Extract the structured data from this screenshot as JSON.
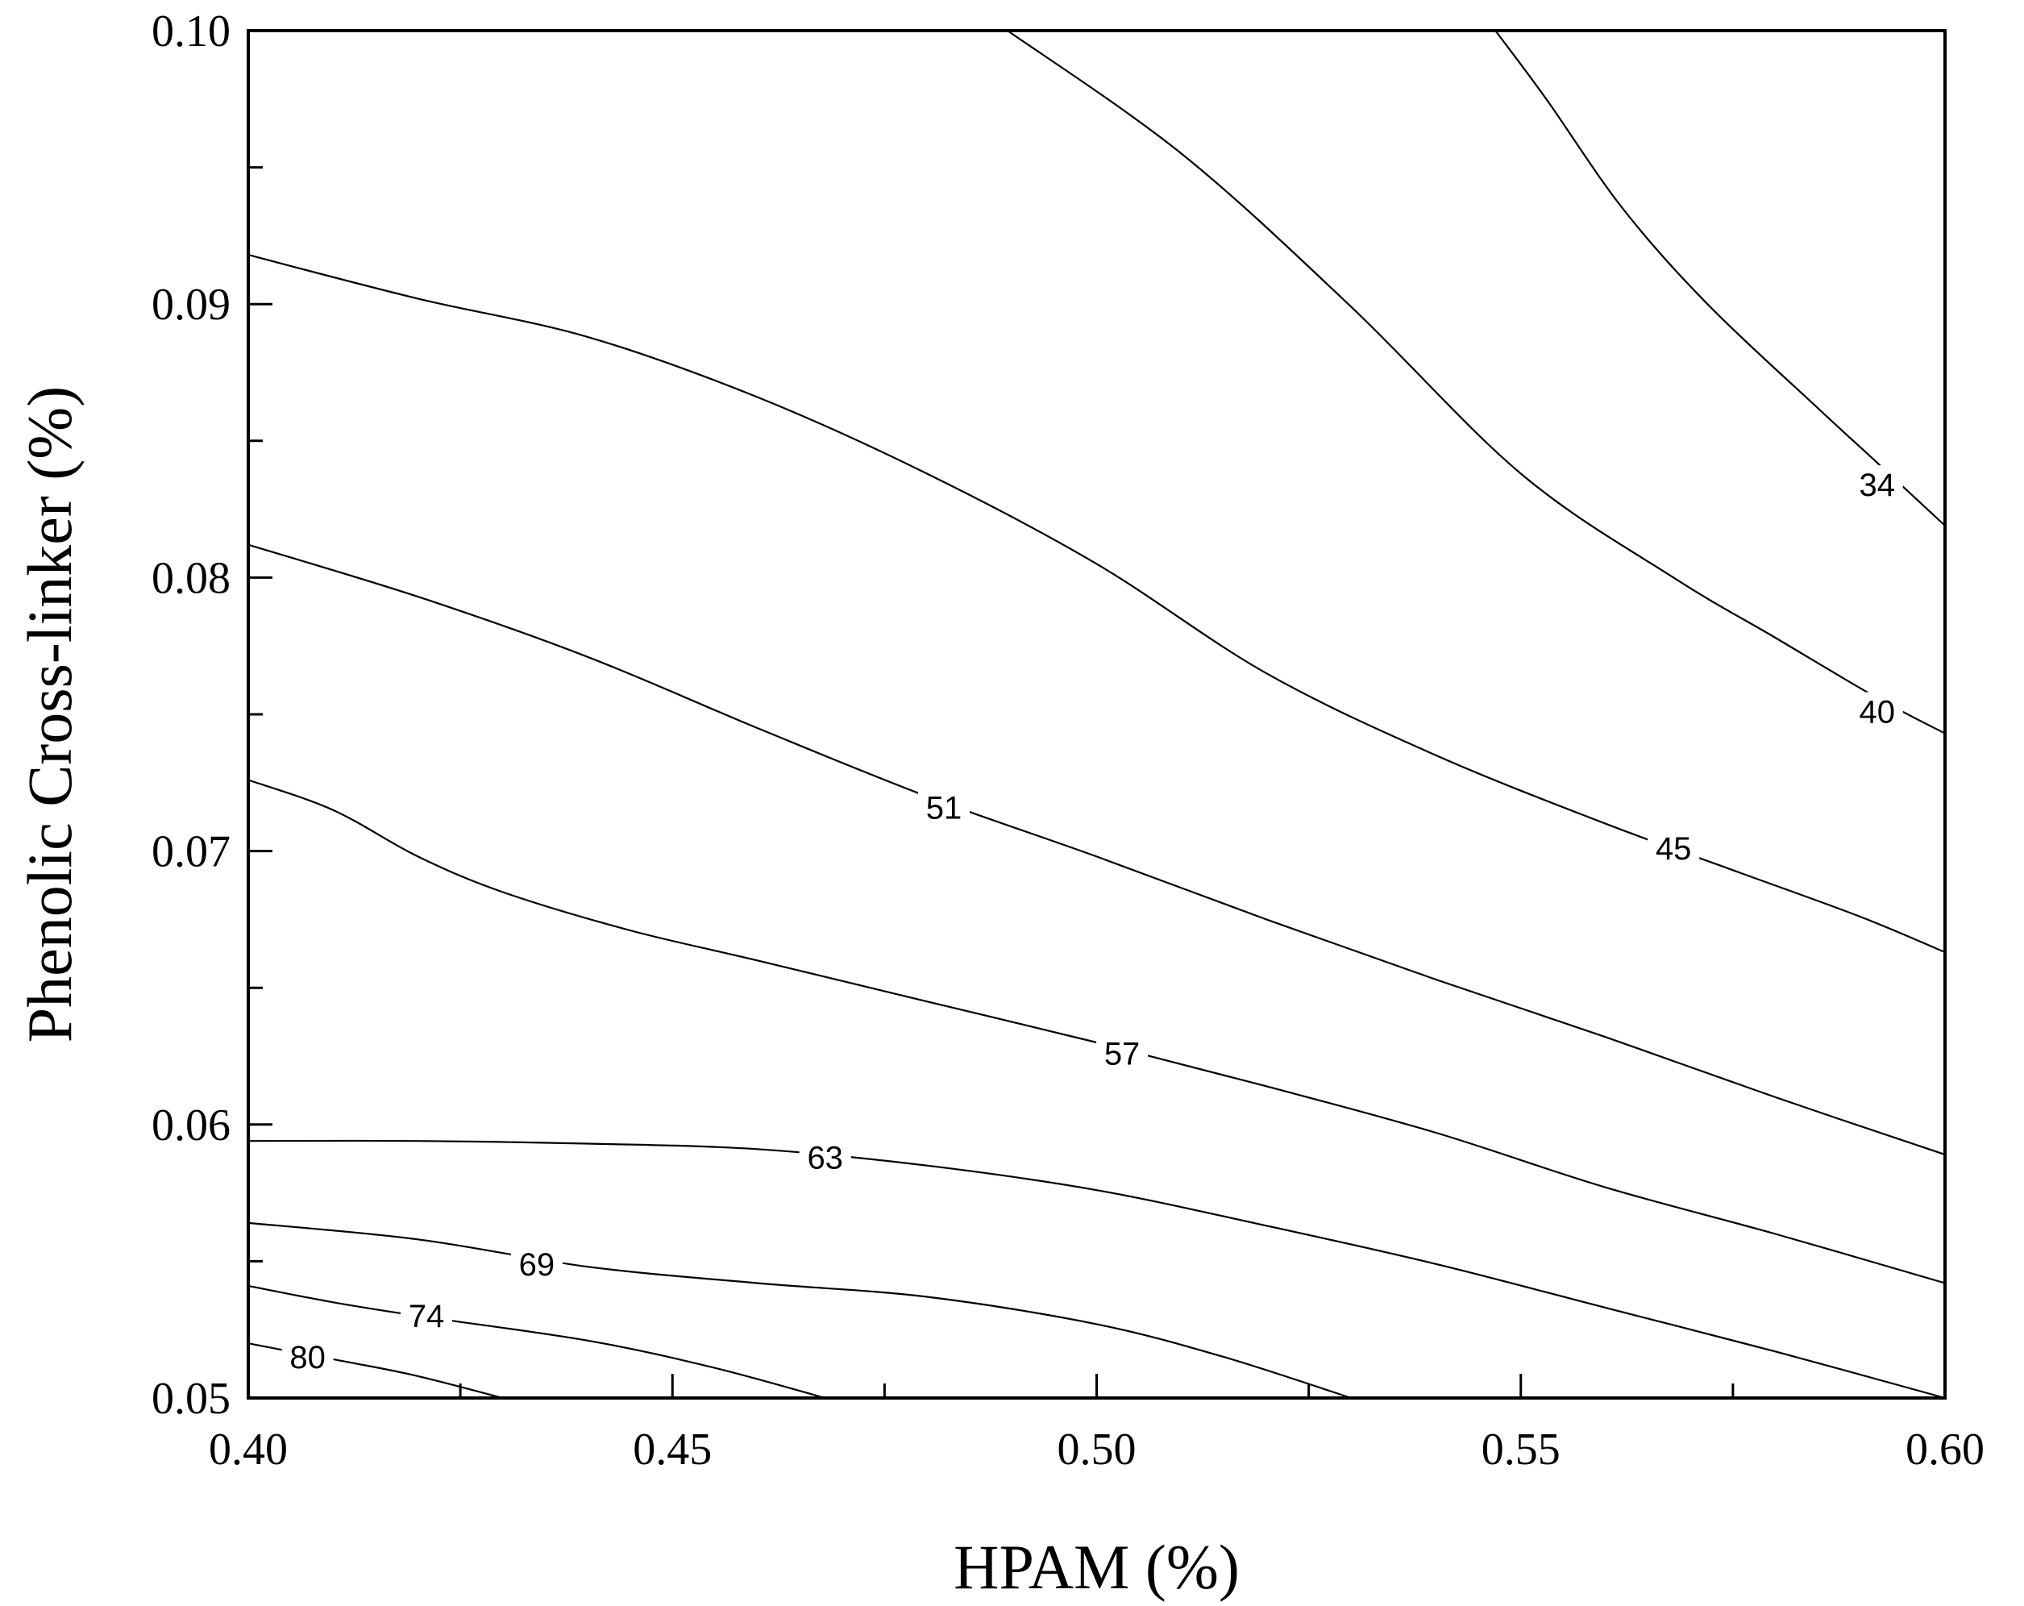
{
  "chart_data": {
    "type": "contour",
    "title": "",
    "xlabel": "HPAM (%)",
    "ylabel": "Phenolic Cross-linker (%)",
    "xlim": [
      0.4,
      0.6
    ],
    "ylim": [
      0.05,
      0.1
    ],
    "x_ticks": [
      "0.40",
      "0.45",
      "0.50",
      "0.55",
      "0.60"
    ],
    "y_ticks": [
      "0.05",
      "0.06",
      "0.07",
      "0.08",
      "0.09",
      "0.10"
    ],
    "grid": false,
    "legend": "none",
    "line_color": "#000000",
    "series": [
      {
        "name": "34",
        "label_at": [
          0.592,
          0.0834
        ],
        "points": [
          [
            0.4895,
            0.1
          ],
          [
            0.51,
            0.0955
          ],
          [
            0.53,
            0.0899
          ],
          [
            0.55,
            0.0838
          ],
          [
            0.568,
            0.08
          ],
          [
            0.58,
            0.0778
          ],
          [
            0.592,
            0.0756
          ],
          [
            0.6,
            0.0743
          ]
        ],
        "label_pos": [
          0.592,
          0.0834
        ]
      },
      {
        "name": "40",
        "label_at": [
          0.592,
          0.0751
        ],
        "points": [
          [
            0.547,
            0.1
          ],
          [
            0.553,
            0.0975
          ],
          [
            0.562,
            0.0935
          ],
          [
            0.572,
            0.09
          ],
          [
            0.585,
            0.0862
          ],
          [
            0.592,
            0.0842
          ],
          [
            0.6,
            0.0819
          ]
        ],
        "label_pos": [
          0.592,
          0.0751
        ]
      },
      {
        "name": "45",
        "label_at": [
          0.568,
          0.0701
        ],
        "points": [
          [
            0.4,
            0.0918
          ],
          [
            0.42,
            0.0902
          ],
          [
            0.44,
            0.0888
          ],
          [
            0.46,
            0.0866
          ],
          [
            0.48,
            0.0838
          ],
          [
            0.5,
            0.0805
          ],
          [
            0.52,
            0.0765
          ],
          [
            0.54,
            0.0735
          ],
          [
            0.56,
            0.071
          ],
          [
            0.575,
            0.0693
          ],
          [
            0.59,
            0.0676
          ],
          [
            0.6,
            0.0663
          ]
        ],
        "label_pos": [
          0.568,
          0.0701
        ]
      },
      {
        "name": "51",
        "label_at": [
          0.482,
          0.0716
        ],
        "points": [
          [
            0.4,
            0.0812
          ],
          [
            0.42,
            0.0793
          ],
          [
            0.44,
            0.0771
          ],
          [
            0.46,
            0.0745
          ],
          [
            0.48,
            0.072
          ],
          [
            0.5,
            0.0698
          ],
          [
            0.52,
            0.0675
          ],
          [
            0.54,
            0.0653
          ],
          [
            0.56,
            0.0632
          ],
          [
            0.58,
            0.061
          ],
          [
            0.6,
            0.0589
          ]
        ],
        "label_pos": [
          0.482,
          0.0716
        ]
      },
      {
        "name": "57",
        "label_at": [
          0.503,
          0.0626
        ],
        "points": [
          [
            0.4,
            0.0726
          ],
          [
            0.41,
            0.0715
          ],
          [
            0.42,
            0.0698
          ],
          [
            0.43,
            0.0685
          ],
          [
            0.445,
            0.0671
          ],
          [
            0.46,
            0.066
          ],
          [
            0.48,
            0.0645
          ],
          [
            0.5,
            0.063
          ],
          [
            0.52,
            0.0614
          ],
          [
            0.54,
            0.0597
          ],
          [
            0.56,
            0.0577
          ],
          [
            0.58,
            0.056
          ],
          [
            0.6,
            0.0542
          ]
        ],
        "label_pos": [
          0.503,
          0.0626
        ]
      },
      {
        "name": "63",
        "label_at": [
          0.468,
          0.0588
        ],
        "points": [
          [
            0.4,
            0.0594
          ],
          [
            0.42,
            0.0594
          ],
          [
            0.44,
            0.0593
          ],
          [
            0.46,
            0.0591
          ],
          [
            0.48,
            0.0585
          ],
          [
            0.5,
            0.0576
          ],
          [
            0.52,
            0.0563
          ],
          [
            0.54,
            0.0549
          ],
          [
            0.56,
            0.0533
          ],
          [
            0.58,
            0.0517
          ],
          [
            0.6,
            0.05
          ]
        ],
        "label_pos": [
          0.468,
          0.0588
        ]
      },
      {
        "name": "69",
        "label_at": [
          0.434,
          0.0549
        ],
        "points": [
          [
            0.4,
            0.0564
          ],
          [
            0.42,
            0.0558
          ],
          [
            0.44,
            0.0548
          ],
          [
            0.46,
            0.0542
          ],
          [
            0.48,
            0.0537
          ],
          [
            0.5,
            0.0527
          ],
          [
            0.515,
            0.0515
          ],
          [
            0.53,
            0.05
          ]
        ],
        "label_pos": [
          0.434,
          0.0549
        ]
      },
      {
        "name": "74",
        "label_at": [
          0.421,
          0.053
        ],
        "points": [
          [
            0.4,
            0.0541
          ],
          [
            0.41,
            0.0535
          ],
          [
            0.42,
            0.053
          ],
          [
            0.44,
            0.0521
          ],
          [
            0.455,
            0.0511
          ],
          [
            0.468,
            0.05
          ]
        ],
        "label_pos": [
          0.421,
          0.053
        ]
      },
      {
        "name": "80",
        "label_at": [
          0.407,
          0.0515
        ],
        "points": [
          [
            0.4,
            0.052
          ],
          [
            0.405,
            0.0517
          ],
          [
            0.412,
            0.0513
          ],
          [
            0.42,
            0.0508
          ],
          [
            0.43,
            0.05
          ]
        ],
        "label_pos": [
          0.407,
          0.0515
        ]
      }
    ]
  }
}
